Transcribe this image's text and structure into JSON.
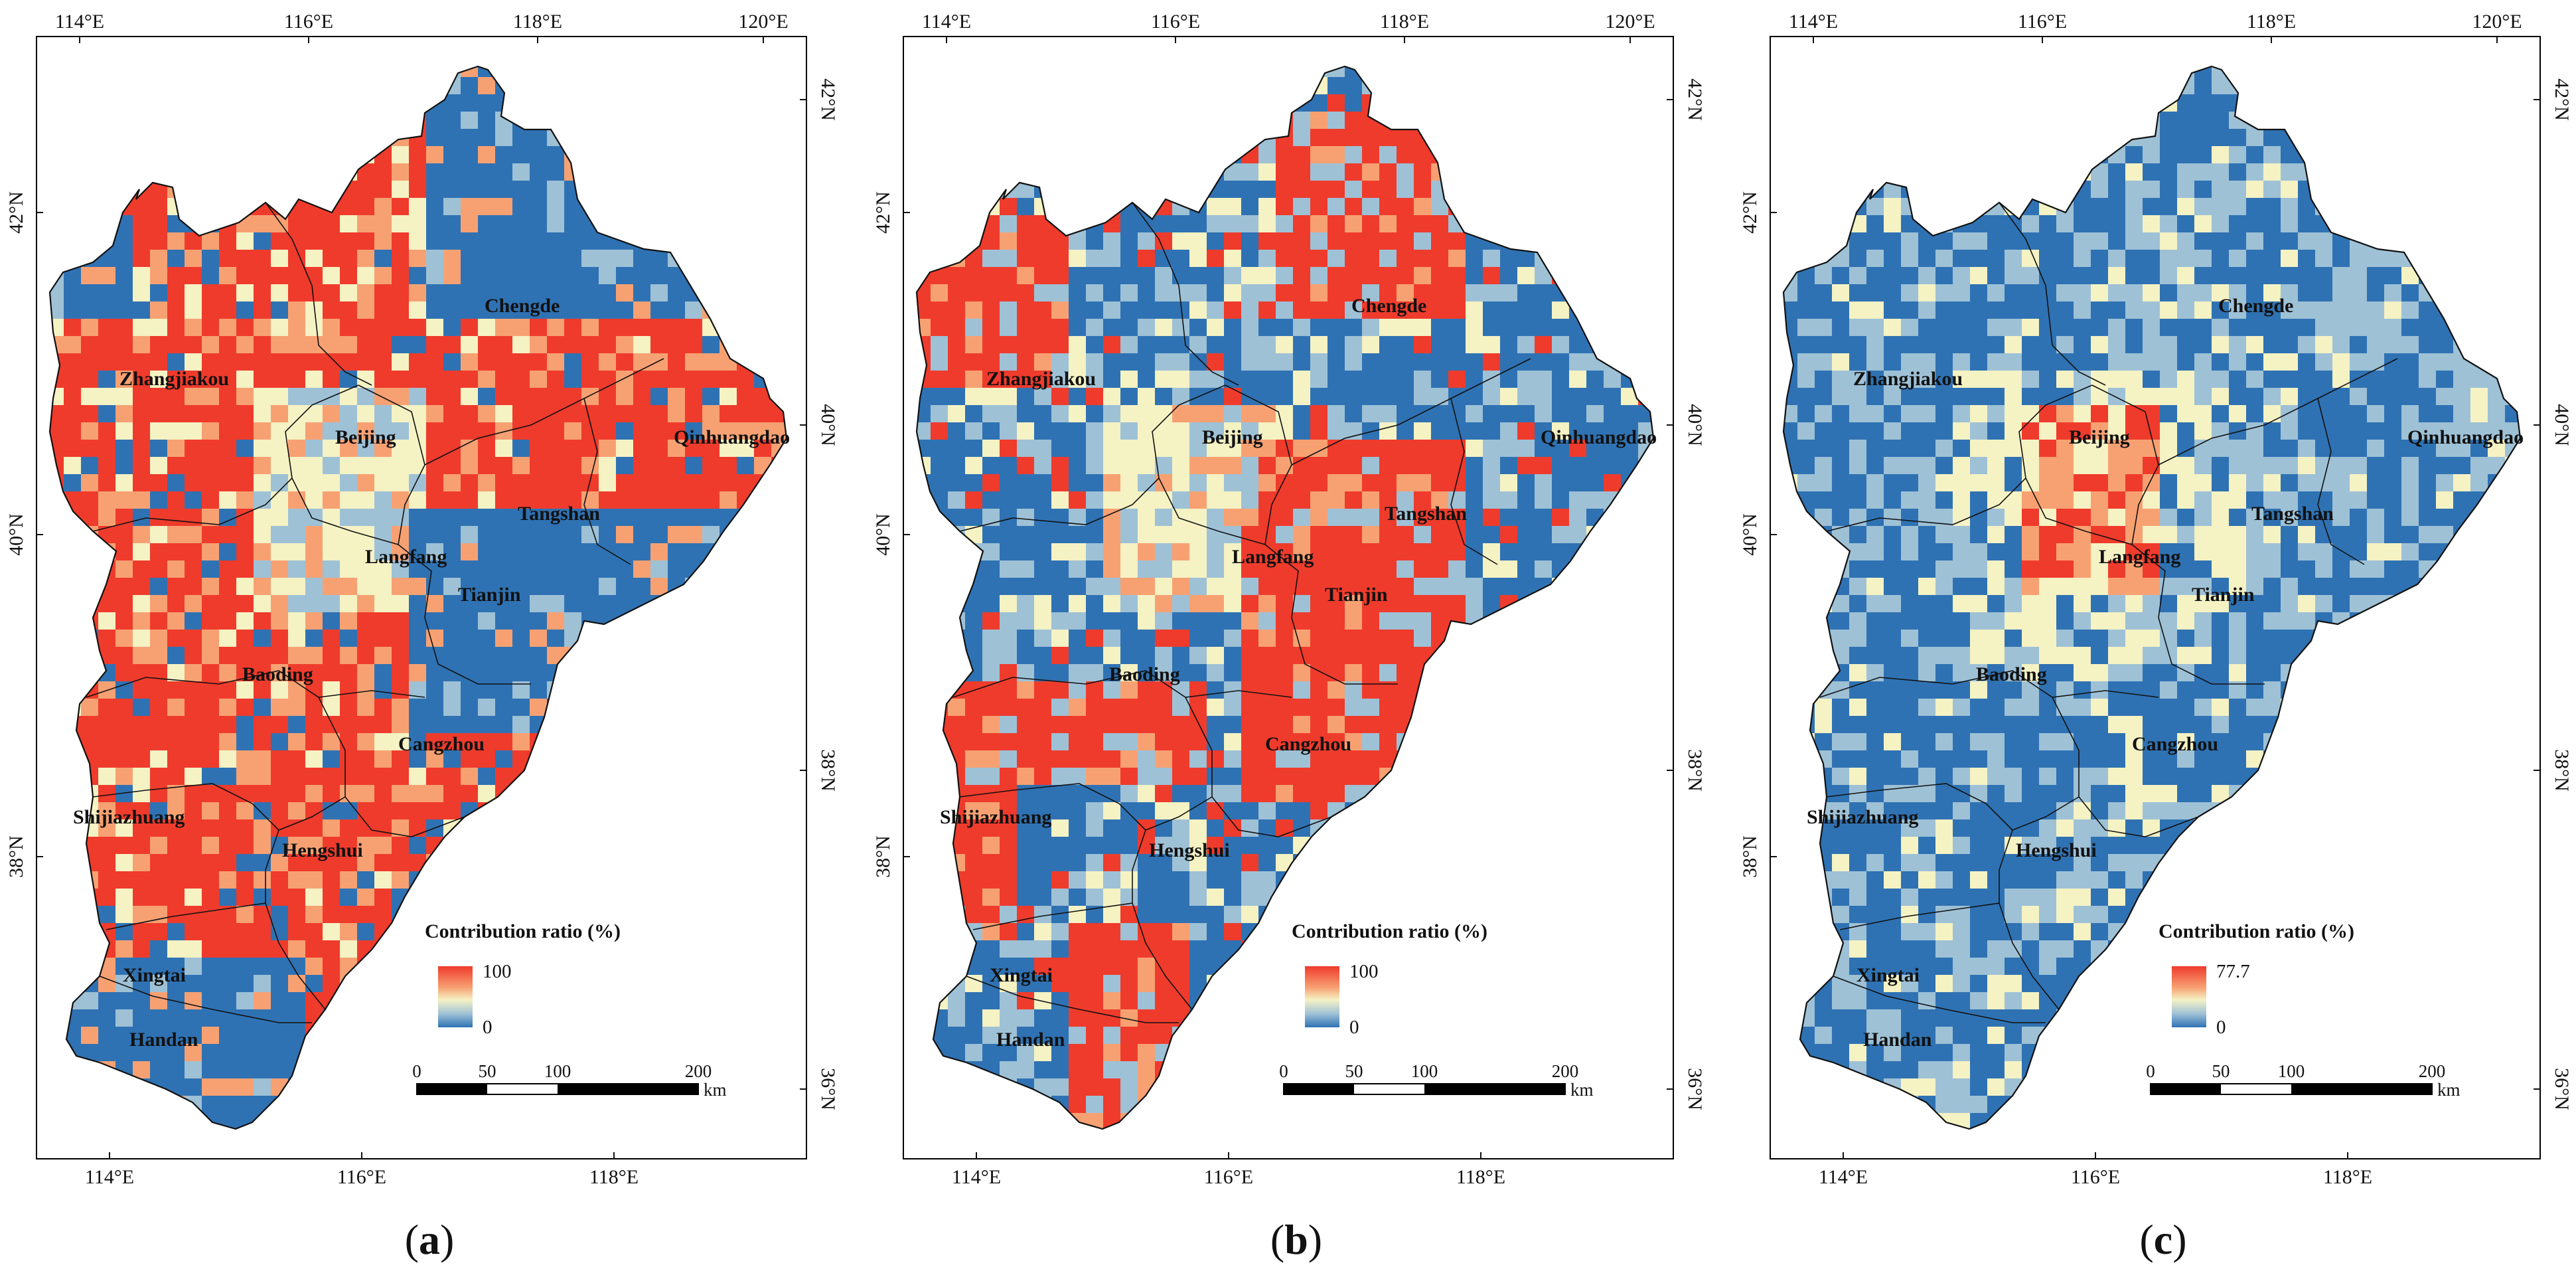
{
  "colors": {
    "high": "#ef3b2c",
    "mid_high": "#f7a173",
    "mid": "#f5f2c4",
    "low_mid": "#9ec1d6",
    "low": "#2f72b3",
    "frame": "#000000"
  },
  "axes": {
    "top_ticks": [
      "114°E",
      "116°E",
      "118°E",
      "120°E"
    ],
    "bottom_ticks": [
      "114°E",
      "116°E",
      "118°E"
    ],
    "left_ticks": [
      "42°N",
      "40°N",
      "38°N"
    ],
    "right_ticks": [
      "42°N",
      "40°N",
      "38°N",
      "36°N"
    ]
  },
  "cities": [
    "Zhangjiakou",
    "Chengde",
    "Beijing",
    "Qinhuangdao",
    "Tangshan",
    "Langfang",
    "Tianjin",
    "Baoding",
    "Cangzhou",
    "Shijiazhuang",
    "Hengshui",
    "Xingtai",
    "Handan"
  ],
  "scale_bar": {
    "labels": [
      "0",
      "50",
      "100",
      "200"
    ],
    "unit": "km"
  },
  "panels": [
    {
      "caption": "(a)",
      "caption_letter": "a",
      "legend_title": "Contribution ratio (%)",
      "legend_max": "100",
      "legend_min": "0",
      "dominant": "high"
    },
    {
      "caption": "(b)",
      "caption_letter": "b",
      "legend_title": "Contribution ratio (%)",
      "legend_max": "100",
      "legend_min": "0",
      "dominant": "mixed"
    },
    {
      "caption": "(c)",
      "caption_letter": "c",
      "legend_title": "Contribution ratio (%)",
      "legend_max": "77.7",
      "legend_min": "0",
      "dominant": "low"
    }
  ]
}
